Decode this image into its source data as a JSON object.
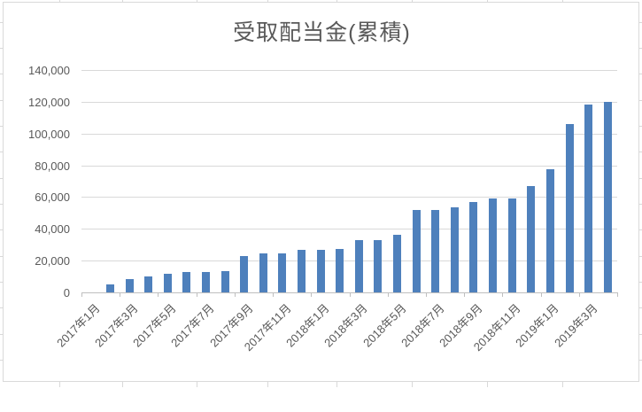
{
  "chart_data": {
    "type": "bar",
    "title": "受取配当金(累積)",
    "categories": [
      "2017年1月",
      "2017年2月",
      "2017年3月",
      "2017年4月",
      "2017年5月",
      "2017年6月",
      "2017年7月",
      "2017年8月",
      "2017年9月",
      "2017年10月",
      "2017年11月",
      "2017年12月",
      "2018年1月",
      "2018年2月",
      "2018年3月",
      "2018年4月",
      "2018年5月",
      "2018年6月",
      "2018年7月",
      "2018年8月",
      "2018年9月",
      "2018年10月",
      "2018年11月",
      "2018年12月",
      "2019年1月",
      "2019年2月",
      "2019年3月",
      "2019年4月"
    ],
    "values": [
      0,
      5000,
      8300,
      9900,
      12000,
      13100,
      13100,
      13300,
      23000,
      24700,
      24700,
      27000,
      27000,
      27100,
      33100,
      33100,
      36200,
      52000,
      52000,
      53300,
      57000,
      58900,
      59000,
      67100,
      77800,
      106000,
      118400,
      120200
    ],
    "x_axis": {
      "tick_labels": [
        "2017年1月",
        "2017年3月",
        "2017年5月",
        "2017年7月",
        "2017年9月",
        "2017年11月",
        "2018年1月",
        "2018年3月",
        "2018年5月",
        "2018年7月",
        "2018年9月",
        "2018年11月",
        "2019年1月",
        "2019年3月"
      ],
      "label_interval": 2
    },
    "y_axis": {
      "min": 0,
      "max": 140000,
      "step": 20000,
      "tick_labels": [
        "0",
        "20,000",
        "40,000",
        "60,000",
        "80,000",
        "100,000",
        "120,000",
        "140,000"
      ]
    },
    "grid": true,
    "legend": "none",
    "colors": {
      "bar": "#4E80BC",
      "gridline": "#D9D9D9",
      "axis_line": "#BFBFBF",
      "text": "#595959",
      "chart_border": "#D9D9D9",
      "background": "#FFFFFF"
    }
  }
}
